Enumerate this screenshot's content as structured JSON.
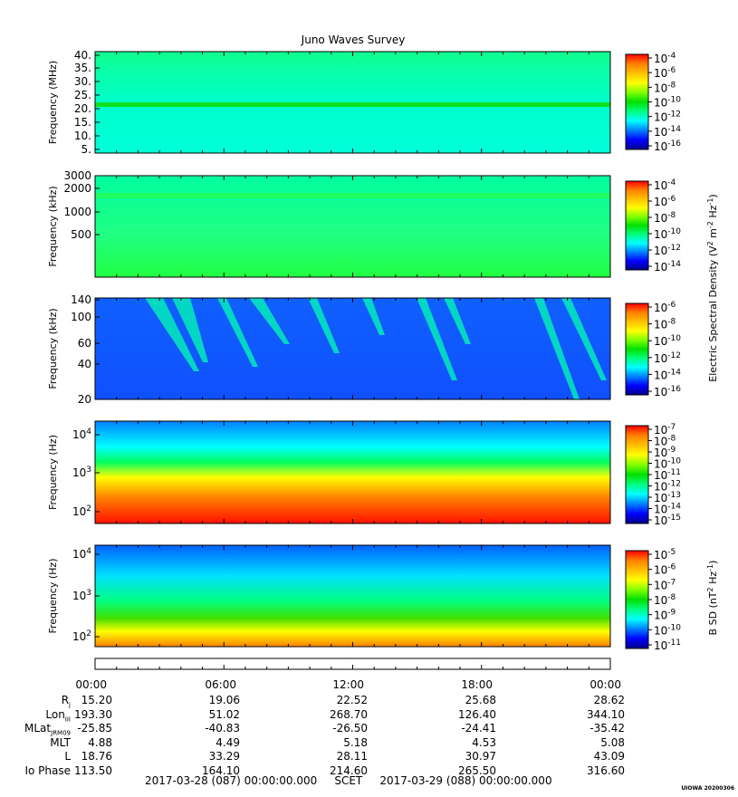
{
  "title": "Juno Waves Survey",
  "colors": {
    "palette": [
      "#00008b",
      "#0000ff",
      "#0080ff",
      "#00ffff",
      "#00ff80",
      "#00e000",
      "#80ff00",
      "#ffff00",
      "#ffc000",
      "#ff8000",
      "#ff0000"
    ]
  },
  "chart_data": [
    {
      "type": "heatmap",
      "ylabel": "Frequency (MHz)",
      "yticks": [
        "40.",
        "35.",
        "30.",
        "25.",
        "20.",
        "15.",
        "10.",
        "5."
      ],
      "colorbar_ticks": [
        "10^-4",
        "10^-6",
        "10^-8",
        "10^-10",
        "10^-12",
        "10^-14",
        "10^-16"
      ]
    },
    {
      "type": "heatmap",
      "ylabel": "Frequency (kHz)",
      "yticks": [
        "3000",
        "2000",
        "1000",
        "500"
      ],
      "colorbar_ticks": [
        "10^-4",
        "10^-6",
        "10^-8",
        "10^-10",
        "10^-12",
        "10^-14"
      ],
      "colorbar_label": "Electric Spectral Density (V^2 m^-2 Hz^-1)"
    },
    {
      "type": "heatmap",
      "ylabel": "Frequency (kHz)",
      "yticks": [
        "140",
        "100",
        "60",
        "40",
        "20"
      ],
      "colorbar_ticks": [
        "10^-6",
        "10^-8",
        "10^-10",
        "10^-12",
        "10^-14",
        "10^-16"
      ]
    },
    {
      "type": "heatmap",
      "ylabel": "Frequency (Hz)",
      "yticks": [
        "10^4",
        "10^3",
        "10^2"
      ],
      "colorbar_ticks": [
        "10^-7",
        "10^-8",
        "10^-9",
        "10^-10",
        "10^-11",
        "10^-12",
        "10^-13",
        "10^-14",
        "10^-15"
      ]
    },
    {
      "type": "heatmap",
      "ylabel": "Frequency (Hz)",
      "yticks": [
        "10^4",
        "10^3",
        "10^2"
      ],
      "colorbar_ticks": [
        "10^-5",
        "10^-6",
        "10^-7",
        "10^-8",
        "10^-9",
        "10^-10",
        "10^-11"
      ],
      "colorbar_label": "B SD (nT^2 Hz^-1)"
    }
  ],
  "time_axis": {
    "ticks": [
      "00:00",
      "06:00",
      "12:00",
      "18:00",
      "00:00"
    ]
  },
  "ephemeris": {
    "rows": [
      {
        "label": "Rj",
        "values": [
          "15.20",
          "19.06",
          "22.52",
          "25.68",
          "28.62"
        ]
      },
      {
        "label": "LonIII",
        "values": [
          "193.30",
          "51.02",
          "268.70",
          "126.40",
          "344.10"
        ]
      },
      {
        "label": "MLatJRM09",
        "values": [
          "-25.85",
          "-40.83",
          "-26.50",
          "-24.41",
          "-35.42"
        ]
      },
      {
        "label": "MLT",
        "values": [
          "4.88",
          "4.49",
          "5.18",
          "4.53",
          "5.08"
        ]
      },
      {
        "label": "L",
        "values": [
          "18.76",
          "33.29",
          "28.11",
          "30.97",
          "43.09"
        ]
      },
      {
        "label": "Io Phase",
        "values": [
          "113.50",
          "164.10",
          "214.60",
          "265.50",
          "316.60"
        ]
      }
    ]
  },
  "footer": {
    "start": "2017-03-28 (087) 00:00:00.000",
    "mid": "SCET",
    "end": "2017-03-29 (088) 00:00:00.000"
  },
  "stamp": "UIOWA 20200306"
}
